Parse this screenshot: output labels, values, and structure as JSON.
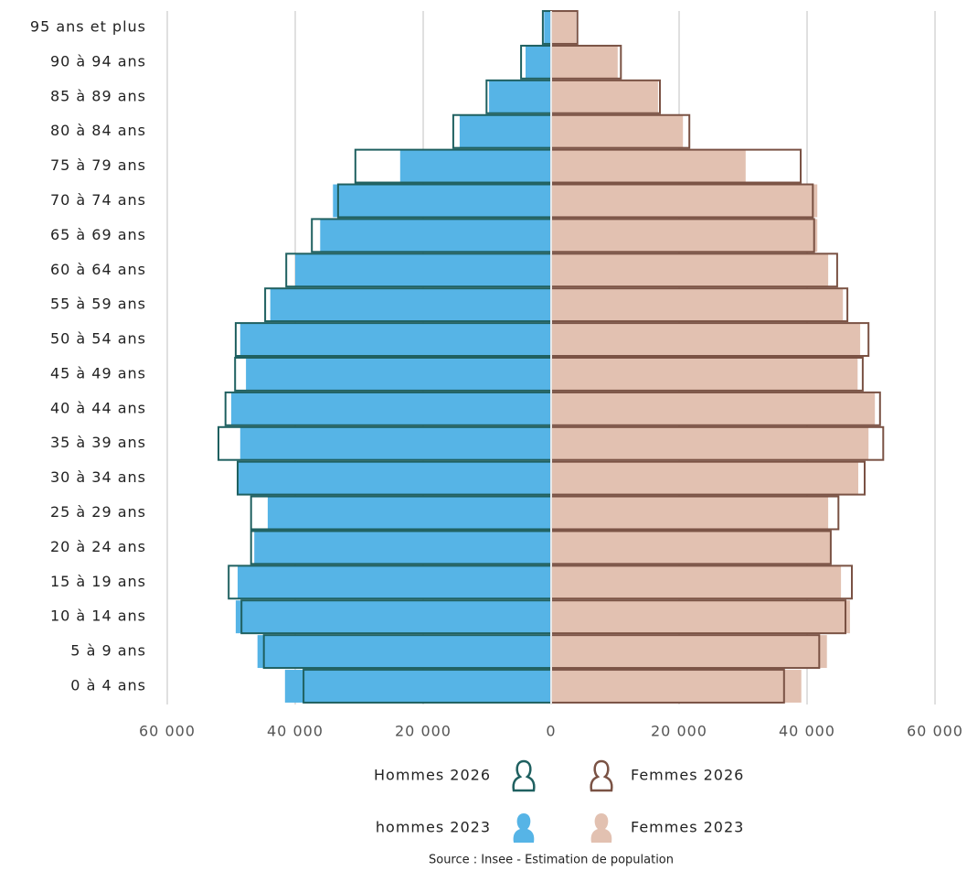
{
  "chart_data": {
    "type": "pyramid",
    "source": "Source : Insee - Estimation de population",
    "categories": [
      "95 ans et plus",
      "90 à 94 ans",
      "85 à 89 ans",
      "80 à 84 ans",
      "75 à 79 ans",
      "70 à 74 ans",
      "65 à 69 ans",
      "60 à 64 ans",
      "55 à 59 ans",
      "50 à 54 ans",
      "45 à 49 ans",
      "40 à 44 ans",
      "35 à 39 ans",
      "30 à 34 ans",
      "25 à 29 ans",
      "20 à 24 ans",
      "15 à 19 ans",
      "10 à 14 ans",
      "5 à 9 ans",
      "0 à 4 ans"
    ],
    "series": [
      {
        "name": "hommes 2023",
        "style": "fill",
        "color": "#56b4e6",
        "values": [
          -1100,
          -4000,
          -9700,
          -14300,
          -23600,
          -34100,
          -36100,
          -40000,
          -43900,
          -48600,
          -47700,
          -50000,
          -48600,
          -48900,
          -44300,
          -46400,
          -49000,
          -49300,
          -45900,
          -41600
        ]
      },
      {
        "name": "Hommes 2026",
        "style": "outline",
        "color": "#1f6060",
        "values": [
          -1300,
          -4700,
          -10100,
          -15300,
          -30600,
          -33300,
          -37400,
          -41400,
          -44700,
          -49300,
          -49400,
          -50900,
          -52000,
          -49000,
          -46900,
          -46900,
          -50400,
          -48400,
          -44900,
          -38700
        ]
      },
      {
        "name": "Femmes 2023",
        "style": "fill",
        "color": "#e2c1b1",
        "values": [
          3900,
          10400,
          16700,
          20600,
          30400,
          41600,
          41600,
          43300,
          45600,
          48300,
          47900,
          50600,
          49600,
          48000,
          43300,
          43700,
          45300,
          46700,
          43100,
          39100
        ]
      },
      {
        "name": "Femmes 2026",
        "style": "outline",
        "color": "#7a5244",
        "values": [
          4100,
          10900,
          17000,
          21600,
          39000,
          40900,
          41100,
          44700,
          46300,
          49600,
          48700,
          51400,
          51900,
          49000,
          44900,
          43700,
          47000,
          46000,
          41900,
          36400
        ]
      }
    ],
    "xlim": [
      -60000,
      60000
    ],
    "xticks": [
      {
        "value": -60000,
        "label": "60 000"
      },
      {
        "value": -40000,
        "label": "40 000"
      },
      {
        "value": -20000,
        "label": "20 000"
      },
      0,
      {
        "value": 20000,
        "label": "20 000"
      },
      {
        "value": 40000,
        "label": "40 000"
      },
      {
        "value": 60000,
        "label": "60 000"
      }
    ],
    "grid": true
  }
}
